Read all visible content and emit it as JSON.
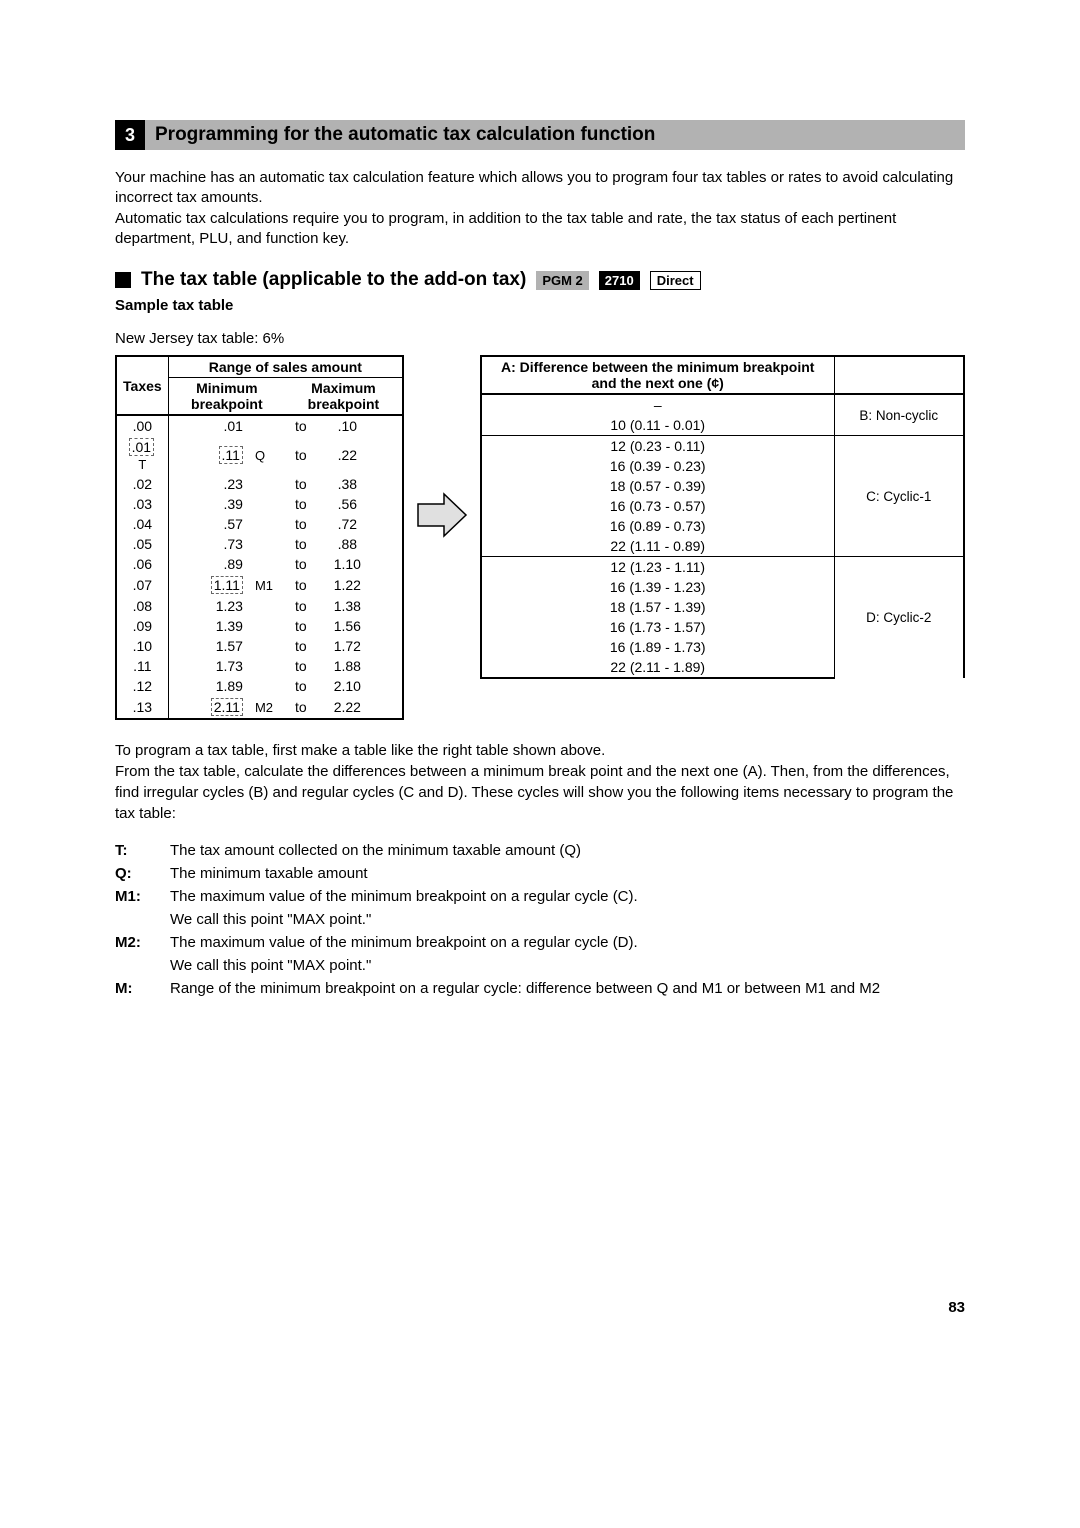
{
  "section": {
    "number": "3",
    "title": "Programming for the automatic tax calculation function"
  },
  "intro": {
    "p1": "Your machine has an automatic tax calculation feature which allows you to program four tax tables or rates to avoid calculating incorrect tax amounts.",
    "p2": "Automatic tax calculations require you to program, in addition to the tax table and rate, the tax status of each pertinent department, PLU, and function key."
  },
  "sub": {
    "title": "The tax table (applicable to the add-on tax)",
    "badge1": "PGM 2",
    "badge2": "2710",
    "badge3": "Direct"
  },
  "sample": {
    "header": "Sample tax table",
    "caption": "New Jersey tax table: 6%"
  },
  "left_table": {
    "h_range": "Range of sales amount",
    "h_taxes": "Taxes",
    "h_min": "Minimum breakpoint",
    "h_max": "Maximum breakpoint",
    "rows": [
      {
        "tax": ".00",
        "min": ".01",
        "to": "to",
        "max": ".10",
        "note": ""
      },
      {
        "tax": ".01",
        "min": ".11",
        "to": "to",
        "max": ".22",
        "note": "Q",
        "tax_note": "T"
      },
      {
        "tax": ".02",
        "min": ".23",
        "to": "to",
        "max": ".38",
        "note": ""
      },
      {
        "tax": ".03",
        "min": ".39",
        "to": "to",
        "max": ".56",
        "note": ""
      },
      {
        "tax": ".04",
        "min": ".57",
        "to": "to",
        "max": ".72",
        "note": ""
      },
      {
        "tax": ".05",
        "min": ".73",
        "to": "to",
        "max": ".88",
        "note": ""
      },
      {
        "tax": ".06",
        "min": ".89",
        "to": "to",
        "max": "1.10",
        "note": ""
      },
      {
        "tax": ".07",
        "min": "1.11",
        "to": "to",
        "max": "1.22",
        "note": "M1"
      },
      {
        "tax": ".08",
        "min": "1.23",
        "to": "to",
        "max": "1.38",
        "note": ""
      },
      {
        "tax": ".09",
        "min": "1.39",
        "to": "to",
        "max": "1.56",
        "note": ""
      },
      {
        "tax": ".10",
        "min": "1.57",
        "to": "to",
        "max": "1.72",
        "note": ""
      },
      {
        "tax": ".11",
        "min": "1.73",
        "to": "to",
        "max": "1.88",
        "note": ""
      },
      {
        "tax": ".12",
        "min": "1.89",
        "to": "to",
        "max": "2.10",
        "note": ""
      },
      {
        "tax": ".13",
        "min": "2.11",
        "to": "to",
        "max": "2.22",
        "note": "M2"
      }
    ]
  },
  "right_table": {
    "header": "A: Difference between the minimum breakpoint and the next one (¢)",
    "labels": {
      "b": "B: Non-cyclic",
      "c": "C: Cyclic-1",
      "d": "D: Cyclic-2"
    },
    "rows": [
      "–",
      "10 (0.11 - 0.01)",
      "12 (0.23 - 0.11)",
      "16 (0.39 - 0.23)",
      "18 (0.57 - 0.39)",
      "16 (0.73 - 0.57)",
      "16 (0.89 - 0.73)",
      "22 (1.11 - 0.89)",
      "12 (1.23 - 1.11)",
      "16 (1.39 - 1.23)",
      "18 (1.57 - 1.39)",
      "16 (1.73 - 1.57)",
      "16 (1.89 - 1.73)",
      "22 (2.11 - 1.89)"
    ]
  },
  "explain": {
    "p1": "To program a tax table, first make a table like the right table shown above.",
    "p2": "From the tax table, calculate the differences between a minimum break point and the next one (A).  Then, from the differences, find irregular cycles (B) and regular cycles (C and D).  These cycles will show you the following items necessary to program the tax table:"
  },
  "defs": [
    {
      "k": "T:",
      "v": "The tax amount collected on the minimum taxable amount (Q)"
    },
    {
      "k": "Q:",
      "v": "The minimum taxable amount"
    },
    {
      "k": "M1:",
      "v": "The maximum value of the minimum breakpoint on a regular cycle (C).\nWe call this point \"MAX point.\""
    },
    {
      "k": "M2:",
      "v": "The maximum value of the minimum breakpoint on a regular cycle (D).\nWe call this point \"MAX point.\""
    },
    {
      "k": "M:",
      "v": "Range of the minimum breakpoint on a regular cycle: difference between Q and M1 or between M1 and M2"
    }
  ],
  "page_number": "83"
}
